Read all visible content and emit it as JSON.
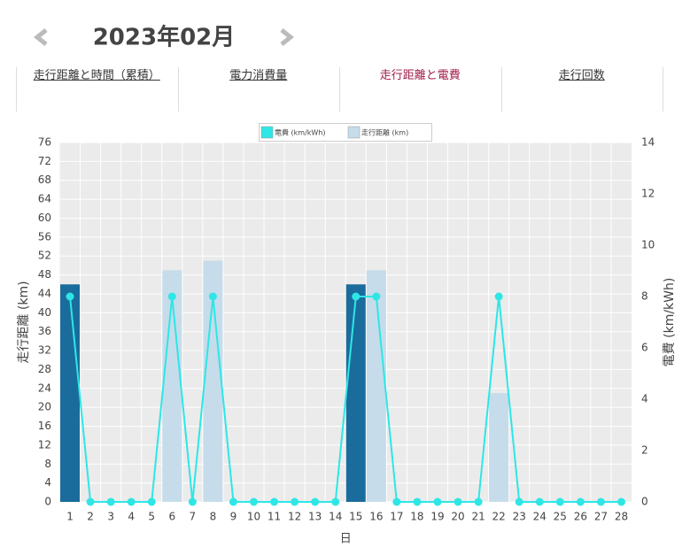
{
  "header": {
    "title": "2023年02月"
  },
  "tabs": [
    {
      "label": "走行距離と時間（累積）",
      "active": false
    },
    {
      "label": "電力消費量",
      "active": false
    },
    {
      "label": "走行距離と電費",
      "active": true
    },
    {
      "label": "走行回数",
      "active": false
    }
  ],
  "chart_data": {
    "type": "combo",
    "categories": [
      "1",
      "2",
      "3",
      "4",
      "5",
      "6",
      "7",
      "8",
      "9",
      "10",
      "11",
      "12",
      "13",
      "14",
      "15",
      "16",
      "17",
      "18",
      "19",
      "20",
      "21",
      "22",
      "23",
      "24",
      "25",
      "26",
      "27",
      "28"
    ],
    "x_label": "日",
    "y_label": "走行距離 (km)",
    "y2_label": "電費 (km/kWh)",
    "ylim": [
      0,
      76
    ],
    "yticks": [
      0,
      4,
      8,
      12,
      16,
      20,
      24,
      28,
      32,
      36,
      40,
      44,
      48,
      52,
      56,
      60,
      64,
      68,
      72,
      76
    ],
    "y2lim": [
      0,
      14
    ],
    "y2ticks": [
      0,
      2,
      4,
      6,
      8,
      10,
      12,
      14
    ],
    "grid": true,
    "series": [
      {
        "name": "電費 (km/kWh)",
        "type": "line",
        "axis": "y2",
        "color": "#2ee6e6",
        "values": [
          8,
          0,
          0,
          0,
          0,
          8,
          0,
          8,
          0,
          0,
          0,
          0,
          0,
          0,
          8,
          8,
          0,
          0,
          0,
          0,
          0,
          8,
          0,
          0,
          0,
          0,
          0,
          0
        ]
      },
      {
        "name": "走行距離 (km)",
        "type": "bar",
        "color": "#c6dcea",
        "values": [
          46,
          0,
          0,
          0,
          0,
          49,
          0,
          51,
          0,
          0,
          0,
          0,
          0,
          0,
          46,
          49,
          0,
          0,
          0,
          0,
          0,
          23,
          0,
          0,
          0,
          0,
          0,
          0
        ],
        "colors": [
          "#1a6c9c",
          "#c6dcea",
          "#c6dcea",
          "#c6dcea",
          "#c6dcea",
          "#c6dcea",
          "#c6dcea",
          "#c6dcea",
          "#c6dcea",
          "#c6dcea",
          "#c6dcea",
          "#c6dcea",
          "#c6dcea",
          "#c6dcea",
          "#1a6c9c",
          "#c6dcea",
          "#c6dcea",
          "#c6dcea",
          "#c6dcea",
          "#c6dcea",
          "#c6dcea",
          "#c6dcea",
          "#c6dcea",
          "#c6dcea",
          "#c6dcea",
          "#c6dcea",
          "#c6dcea",
          "#c6dcea"
        ]
      }
    ]
  }
}
